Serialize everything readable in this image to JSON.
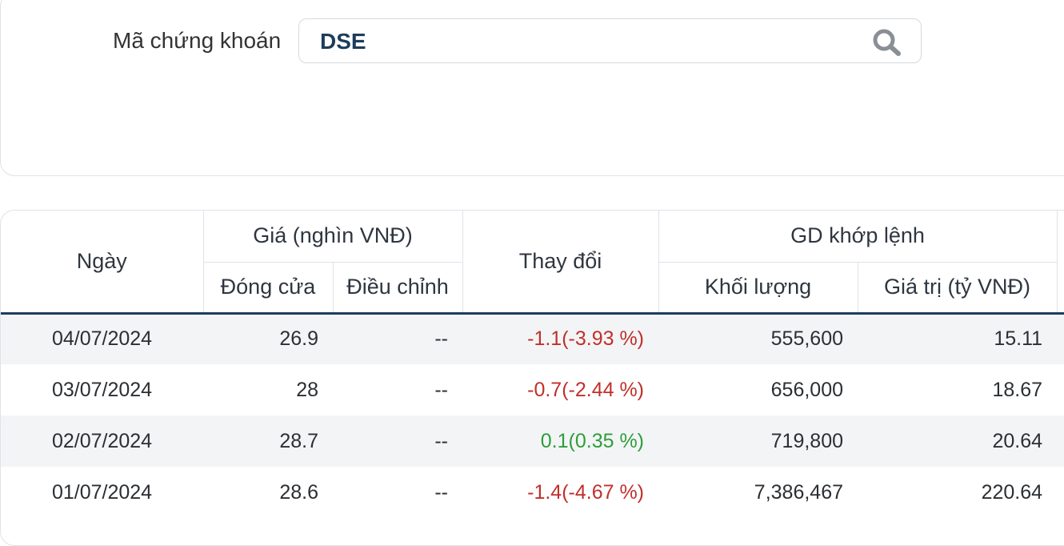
{
  "search": {
    "label": "Mã chứng khoán",
    "value": "DSE",
    "icon": "search-icon"
  },
  "table": {
    "headers": {
      "date": "Ngày",
      "price_group": "Giá (nghìn VNĐ)",
      "close": "Đóng cửa",
      "adjusted": "Điều chỉnh",
      "change": "Thay đổi",
      "matched_group": "GD khớp lệnh",
      "volume": "Khối lượng",
      "value": "Giá trị (tỷ VNĐ)"
    },
    "rows": [
      {
        "date": "04/07/2024",
        "close": "26.9",
        "adjusted": "--",
        "change": "-1.1(-3.93 %)",
        "volume": "555,600",
        "value": "15.11"
      },
      {
        "date": "03/07/2024",
        "close": "28",
        "adjusted": "--",
        "change": "-0.7(-2.44 %)",
        "volume": "656,000",
        "value": "18.67"
      },
      {
        "date": "02/07/2024",
        "close": "28.7",
        "adjusted": "--",
        "change": "0.1(0.35 %)",
        "volume": "719,800",
        "value": "20.64"
      },
      {
        "date": "01/07/2024",
        "close": "28.6",
        "adjusted": "--",
        "change": "-1.4(-4.67 %)",
        "volume": "7,386,467",
        "value": "220.64"
      }
    ]
  },
  "colors": {
    "negative": "#c0302b",
    "positive": "#2e9e3a",
    "accent": "#1c3d5a"
  }
}
